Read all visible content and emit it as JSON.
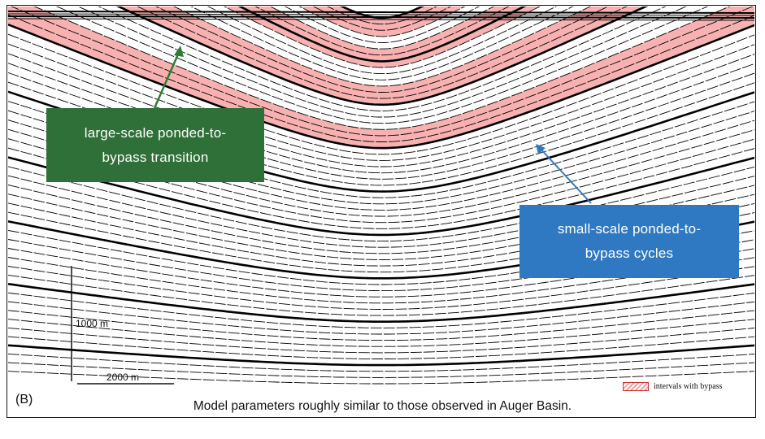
{
  "panel_label": "(B)",
  "caption": "Model parameters roughly similar to those observed in Auger Basin.",
  "callouts": {
    "large": "large-scale ponded-to-\nbypass transition",
    "small": "small-scale ponded-to-\nbypass cycles"
  },
  "scale_bars": {
    "vertical": "1000 m",
    "horizontal": "2000 m"
  },
  "legend": {
    "label": "intervals with bypass"
  },
  "colors": {
    "bypass_fill": "#f7a3a3",
    "large_callout": "#2e7037",
    "small_callout": "#2f78c2",
    "green_arrow": "#2e7d32",
    "blue_arrow": "#2f78c2",
    "strata_line": "#000000"
  }
}
